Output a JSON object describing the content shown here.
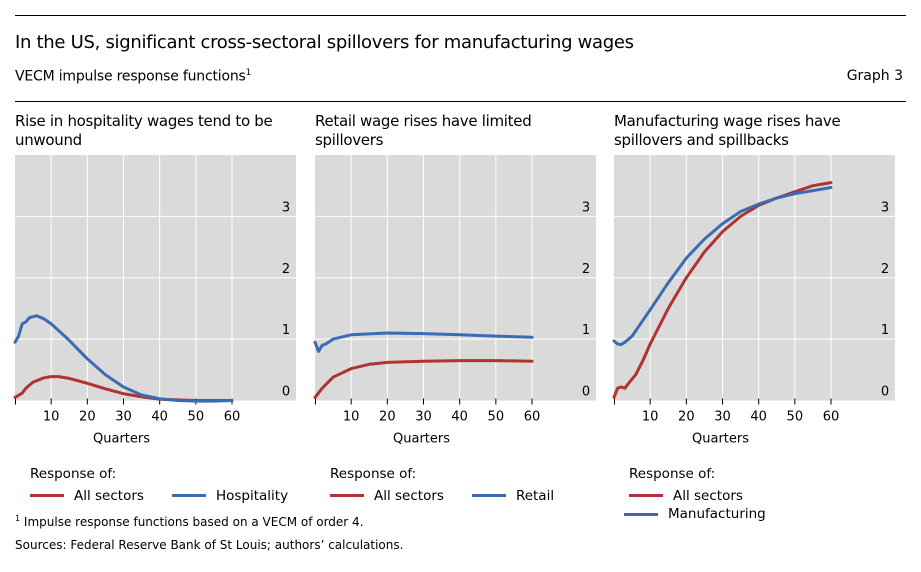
{
  "header": {
    "title": "In the US, significant cross-sectoral spillovers for manufacturing wages",
    "subtitle": "VECM impulse response functions",
    "subtitle_sup": "1",
    "graph_number": "Graph 3"
  },
  "colors": {
    "red": "#b03232",
    "blue": "#3b6bb0",
    "plot_bg": "#dadada",
    "grid": "#ffffff"
  },
  "legend_header": "Response of:",
  "chart_data": [
    {
      "type": "line",
      "title": "Rise in hospitality wages tend to be unwound",
      "xlabel": "Quarters",
      "ylabel": "",
      "xlim": [
        0,
        62
      ],
      "ylim": [
        0,
        4
      ],
      "xticks": [
        10,
        20,
        30,
        40,
        50,
        60
      ],
      "yticks": [
        0,
        1,
        2,
        3
      ],
      "grid": true,
      "legend_placement": "bottom",
      "series": [
        {
          "name": "All sectors",
          "color": "red",
          "x": [
            0,
            2,
            3,
            5,
            8,
            10,
            12,
            15,
            20,
            25,
            30,
            35,
            40,
            45,
            50,
            60
          ],
          "y": [
            0.05,
            0.12,
            0.2,
            0.3,
            0.37,
            0.39,
            0.39,
            0.36,
            0.28,
            0.19,
            0.11,
            0.06,
            0.02,
            0.01,
            0.0,
            0.0
          ]
        },
        {
          "name": "Hospitality",
          "color": "blue",
          "x": [
            0,
            1,
            2,
            3,
            4,
            6,
            8,
            10,
            15,
            20,
            25,
            30,
            35,
            40,
            45,
            50,
            55,
            60
          ],
          "y": [
            0.95,
            1.05,
            1.25,
            1.28,
            1.35,
            1.38,
            1.33,
            1.25,
            0.98,
            0.68,
            0.42,
            0.22,
            0.09,
            0.03,
            0.0,
            -0.01,
            -0.01,
            0.0
          ]
        }
      ]
    },
    {
      "type": "line",
      "title": "Retail wage rises have limited spillovers",
      "xlabel": "Quarters",
      "ylabel": "",
      "xlim": [
        0,
        62
      ],
      "ylim": [
        0,
        4
      ],
      "xticks": [
        10,
        20,
        30,
        40,
        50,
        60
      ],
      "yticks": [
        0,
        1,
        2,
        3
      ],
      "grid": true,
      "legend_placement": "bottom",
      "series": [
        {
          "name": "All sectors",
          "color": "red",
          "x": [
            0,
            2,
            5,
            10,
            15,
            20,
            30,
            40,
            50,
            60
          ],
          "y": [
            0.05,
            0.2,
            0.38,
            0.52,
            0.59,
            0.62,
            0.64,
            0.65,
            0.65,
            0.64
          ]
        },
        {
          "name": "Retail",
          "color": "blue",
          "x": [
            0,
            1,
            2,
            3,
            5,
            10,
            20,
            30,
            40,
            50,
            60
          ],
          "y": [
            0.95,
            0.8,
            0.9,
            0.92,
            1.0,
            1.07,
            1.1,
            1.09,
            1.07,
            1.05,
            1.03
          ]
        }
      ]
    },
    {
      "type": "line",
      "title": "Manufacturing wage rises have spillovers and spillbacks",
      "xlabel": "Quarters",
      "ylabel": "",
      "xlim": [
        0,
        62
      ],
      "ylim": [
        0,
        4
      ],
      "xticks": [
        10,
        20,
        30,
        40,
        50,
        60
      ],
      "yticks": [
        0,
        1,
        2,
        3
      ],
      "grid": true,
      "legend_placement": "bottom",
      "series": [
        {
          "name": "All sectors",
          "color": "red",
          "x": [
            0,
            1,
            2,
            3,
            4,
            6,
            8,
            10,
            15,
            20,
            25,
            30,
            35,
            40,
            45,
            50,
            55,
            60
          ],
          "y": [
            0.05,
            0.2,
            0.22,
            0.2,
            0.28,
            0.42,
            0.65,
            0.92,
            1.5,
            2.0,
            2.42,
            2.75,
            3.0,
            3.18,
            3.3,
            3.4,
            3.5,
            3.55
          ]
        },
        {
          "name": "Manufacturing",
          "color": "blue",
          "x": [
            0,
            1,
            2,
            3,
            5,
            10,
            15,
            20,
            25,
            30,
            35,
            40,
            45,
            50,
            55,
            60
          ],
          "y": [
            0.97,
            0.92,
            0.91,
            0.95,
            1.05,
            1.48,
            1.92,
            2.32,
            2.63,
            2.88,
            3.08,
            3.2,
            3.3,
            3.37,
            3.42,
            3.47
          ]
        }
      ]
    }
  ],
  "footnotes": {
    "note": "Impulse response functions based on a VECM of order 4.",
    "note_sup": "1",
    "sources": "Sources: Federal Reserve Bank of St Louis; authors’ calculations."
  }
}
